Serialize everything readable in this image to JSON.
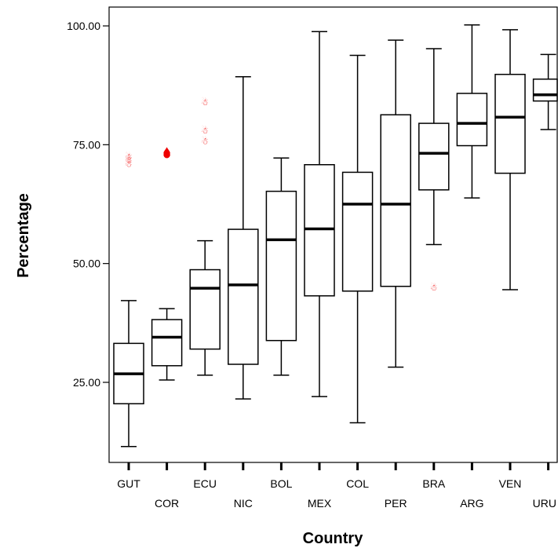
{
  "chart_data": {
    "type": "boxplot",
    "title": "",
    "xlabel": "Country",
    "ylabel": "Percentage",
    "ylim": [
      8,
      104
    ],
    "yticks": [
      {
        "value": 25,
        "label": "25.00"
      },
      {
        "value": 50,
        "label": "50.00"
      },
      {
        "value": 75,
        "label": "75.00"
      },
      {
        "value": 100,
        "label": "100.00"
      }
    ],
    "grid": false,
    "legend": "none",
    "colors": {
      "box": "#000000",
      "outlier": "#ee0000",
      "extreme": "#ee0000"
    },
    "categories": [
      "GUT",
      "COR",
      "ECU",
      "NIC",
      "BOL",
      "MEX",
      "COL",
      "PER",
      "BRA",
      "ARG",
      "VEN",
      "URU"
    ],
    "boxes": [
      {
        "label": "GUT",
        "min": 11.5,
        "q1": 20.5,
        "median": 26.8,
        "q3": 33.2,
        "max": 42.2,
        "outliers": [
          71.0,
          71.8,
          72.5
        ],
        "extremes": []
      },
      {
        "label": "COR",
        "min": 25.5,
        "q1": 28.5,
        "median": 34.5,
        "q3": 38.2,
        "max": 40.5,
        "outliers": [],
        "extremes": [
          73.5
        ]
      },
      {
        "label": "ECU",
        "min": 26.5,
        "q1": 32.0,
        "median": 44.8,
        "q3": 48.7,
        "max": 54.8,
        "outliers": [
          75.8,
          78.0,
          84.0
        ],
        "extremes": []
      },
      {
        "label": "NIC",
        "min": 21.5,
        "q1": 28.8,
        "median": 45.5,
        "q3": 57.2,
        "max": 89.3,
        "outliers": [],
        "extremes": []
      },
      {
        "label": "BOL",
        "min": 26.5,
        "q1": 33.8,
        "median": 55.0,
        "q3": 65.2,
        "max": 72.2,
        "outliers": [],
        "extremes": []
      },
      {
        "label": "MEX",
        "min": 22.0,
        "q1": 43.2,
        "median": 57.3,
        "q3": 70.8,
        "max": 98.8,
        "outliers": [],
        "extremes": []
      },
      {
        "label": "COL",
        "min": 16.5,
        "q1": 44.2,
        "median": 62.5,
        "q3": 69.2,
        "max": 93.8,
        "outliers": [],
        "extremes": []
      },
      {
        "label": "PER",
        "min": 28.2,
        "q1": 45.2,
        "median": 62.5,
        "q3": 81.3,
        "max": 97.0,
        "outliers": [],
        "extremes": []
      },
      {
        "label": "BRA",
        "min": 54.0,
        "q1": 65.5,
        "median": 73.2,
        "q3": 79.5,
        "max": 95.2,
        "outliers": [
          45.0
        ],
        "extremes": []
      },
      {
        "label": "ARG",
        "min": 63.8,
        "q1": 74.8,
        "median": 79.5,
        "q3": 85.8,
        "max": 100.2,
        "outliers": [],
        "extremes": []
      },
      {
        "label": "VEN",
        "min": 44.5,
        "q1": 69.0,
        "median": 80.8,
        "q3": 89.8,
        "max": 99.2,
        "outliers": [],
        "extremes": []
      },
      {
        "label": "URU",
        "min": 78.2,
        "q1": 84.2,
        "median": 85.5,
        "q3": 88.8,
        "max": 94.0,
        "outliers": [],
        "extremes": []
      }
    ]
  }
}
